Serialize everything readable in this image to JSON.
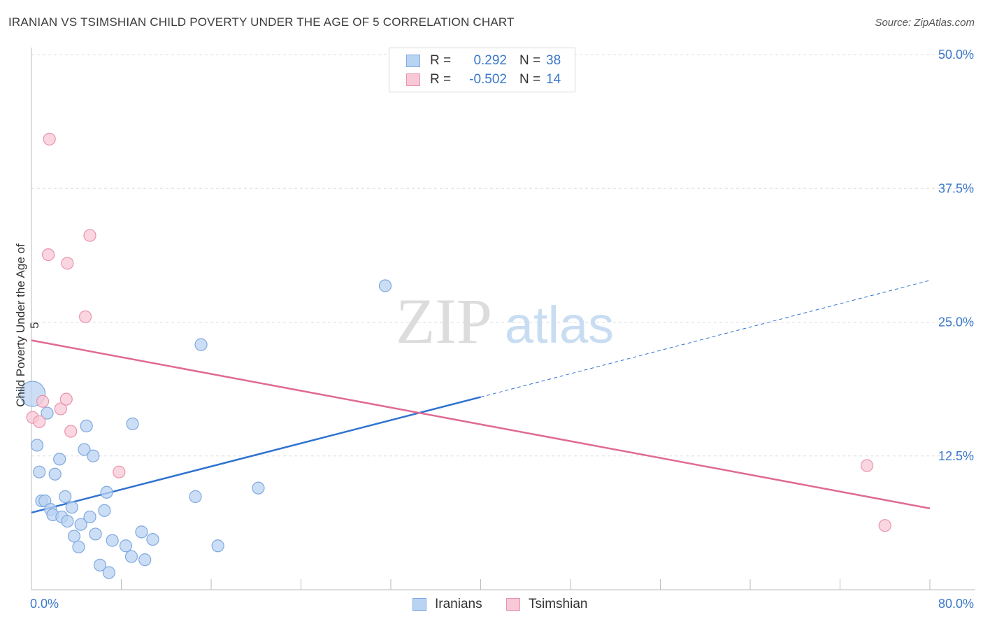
{
  "title": "IRANIAN VS TSIMSHIAN CHILD POVERTY UNDER THE AGE OF 5 CORRELATION CHART",
  "source": "Source: ZipAtlas.com",
  "watermark": {
    "zip": "ZIP",
    "atlas": "atlas"
  },
  "colors": {
    "blue_fill": "#b9d3f3",
    "blue_stroke": "#7fa9df",
    "blue_line": "#2f72d0",
    "pink_fill": "#f8c8d6",
    "pink_stroke": "#ea93ad",
    "pink_line": "#e06a93",
    "tick_label": "#3a78c8",
    "grid": "#dddddd"
  },
  "legend": {
    "rows": [
      {
        "r_label": "R =",
        "r_value": "0.292",
        "n_label": "N =",
        "n_value": "38"
      },
      {
        "r_label": "R =",
        "r_value": "-0.502",
        "n_label": "N =",
        "n_value": "14"
      }
    ],
    "series": [
      "Iranians",
      "Tsimshian"
    ]
  },
  "chart_data": {
    "type": "scatter",
    "title": "IRANIAN VS TSIMSHIAN CHILD POVERTY UNDER THE AGE OF 5 CORRELATION CHART",
    "xlabel": "",
    "ylabel": "Child Poverty Under the Age of 5",
    "xlim": [
      0,
      80
    ],
    "ylim": [
      0,
      50
    ],
    "x_tick_labels": [
      "0.0%",
      "80.0%"
    ],
    "y_ticks": [
      12.5,
      25.0,
      37.5,
      50.0
    ],
    "y_tick_labels": [
      "12.5%",
      "25.0%",
      "37.5%",
      "50.0%"
    ],
    "series": [
      {
        "name": "Iranians",
        "r": 0.292,
        "n": 38,
        "points": [
          [
            0.1,
            18.3,
            "large"
          ],
          [
            0.5,
            13.5
          ],
          [
            0.7,
            11.0
          ],
          [
            0.9,
            8.3
          ],
          [
            1.2,
            8.3
          ],
          [
            1.4,
            16.5
          ],
          [
            1.7,
            7.5
          ],
          [
            1.9,
            7.0
          ],
          [
            2.1,
            10.8
          ],
          [
            2.5,
            12.2
          ],
          [
            2.7,
            6.8
          ],
          [
            3.0,
            8.7
          ],
          [
            3.2,
            6.4
          ],
          [
            3.6,
            7.7
          ],
          [
            3.8,
            5.0
          ],
          [
            4.2,
            4.0
          ],
          [
            4.4,
            6.1
          ],
          [
            4.7,
            13.1
          ],
          [
            4.9,
            15.3
          ],
          [
            5.2,
            6.8
          ],
          [
            5.5,
            12.5
          ],
          [
            5.7,
            5.2
          ],
          [
            6.1,
            2.3
          ],
          [
            6.5,
            7.4
          ],
          [
            6.7,
            9.1
          ],
          [
            6.9,
            1.6
          ],
          [
            7.2,
            4.6
          ],
          [
            8.4,
            4.1
          ],
          [
            8.9,
            3.1
          ],
          [
            9.0,
            15.5
          ],
          [
            9.8,
            5.4
          ],
          [
            10.1,
            2.8
          ],
          [
            10.8,
            4.7
          ],
          [
            14.6,
            8.7
          ],
          [
            15.1,
            22.9
          ],
          [
            16.6,
            4.1
          ],
          [
            20.2,
            9.5
          ],
          [
            31.5,
            28.4
          ]
        ],
        "trend": {
          "x_start": 0,
          "y_start": 7.2,
          "x_solid_end": 40,
          "y_solid_end": 18.0,
          "x_end": 80,
          "y_end": 28.9
        }
      },
      {
        "name": "Tsimshian",
        "r": -0.502,
        "n": 14,
        "points": [
          [
            0.1,
            16.1
          ],
          [
            0.7,
            15.7
          ],
          [
            1.0,
            17.6
          ],
          [
            1.6,
            42.1
          ],
          [
            1.5,
            31.3
          ],
          [
            2.6,
            16.9
          ],
          [
            3.1,
            17.8
          ],
          [
            3.2,
            30.5
          ],
          [
            3.5,
            14.8
          ],
          [
            4.8,
            25.5
          ],
          [
            5.2,
            33.1
          ],
          [
            7.8,
            11.0
          ],
          [
            74.4,
            11.6
          ],
          [
            76.0,
            6.0
          ]
        ],
        "trend": {
          "x_start": 0,
          "y_start": 23.3,
          "x_end": 80,
          "y_end": 7.6
        }
      }
    ]
  }
}
